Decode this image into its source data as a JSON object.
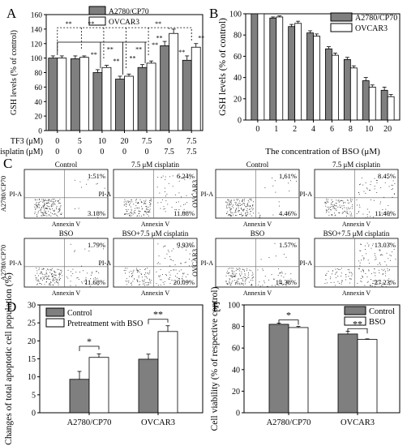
{
  "panels": {
    "A": {
      "letter": "A"
    },
    "B": {
      "letter": "B"
    },
    "C": {
      "letter": "C"
    },
    "D": {
      "letter": "D"
    },
    "E": {
      "letter": "E"
    }
  },
  "colors": {
    "gray": "#7f7f7f",
    "white": "#ffffff",
    "dark": "#6a6a6a"
  },
  "chart_data": [
    {
      "id": "A",
      "type": "bar",
      "ylabel": "GSH levels (% of control)",
      "ylim": [
        0,
        160
      ],
      "yticks": [
        0,
        20,
        40,
        60,
        80,
        100,
        120,
        140,
        160
      ],
      "row_labels": [
        "TF3 (μM)",
        "cisplatin (μM)"
      ],
      "categories": [
        {
          "tf3": "0",
          "cis": "0"
        },
        {
          "tf3": "5",
          "cis": "0"
        },
        {
          "tf3": "10",
          "cis": "0"
        },
        {
          "tf3": "20",
          "cis": "0"
        },
        {
          "tf3": "7.5",
          "cis": "0"
        },
        {
          "tf3": "0",
          "cis": "7.5"
        },
        {
          "tf3": "7.5",
          "cis": "7.5"
        }
      ],
      "series": [
        {
          "name": "A2780/CP70",
          "values": [
            100,
            99,
            80,
            71,
            87,
            117,
            97
          ],
          "errors": [
            3,
            4,
            4,
            4,
            4,
            6,
            6
          ]
        },
        {
          "name": "OVCAR3",
          "values": [
            100,
            101,
            87,
            75,
            93,
            134,
            115
          ],
          "errors": [
            3,
            2,
            3,
            3,
            3,
            6,
            5
          ]
        }
      ],
      "sig": "**"
    },
    {
      "id": "B",
      "type": "bar",
      "ylabel": "GSH levels (% of control)",
      "xlabel": "The concentration of BSO (μM)",
      "ylim": [
        0,
        100
      ],
      "yticks": [
        0,
        20,
        40,
        60,
        80,
        100
      ],
      "categories": [
        "0",
        "1",
        "2",
        "4",
        "6",
        "8",
        "10",
        "20"
      ],
      "series": [
        {
          "name": "A2780/CP70",
          "values": [
            100,
            96,
            88,
            82,
            67,
            57,
            37,
            28
          ],
          "errors": [
            0,
            1,
            2,
            2,
            2,
            2,
            3,
            3
          ]
        },
        {
          "name": "OVCAR3",
          "values": [
            100,
            97,
            91,
            79,
            61,
            49,
            31,
            22
          ],
          "errors": [
            0,
            1,
            2,
            2,
            2,
            2,
            2,
            2
          ]
        }
      ]
    },
    {
      "id": "C",
      "type": "scatter",
      "xlabel": "Annexin V",
      "ylabel": "PI-A",
      "plots": [
        {
          "title": "Control",
          "cell": "A2780/CP70",
          "ur": "1.51%",
          "lr": "3.18%",
          "treated": false
        },
        {
          "title": "7.5 μM cisplatin",
          "cell": "",
          "ur": "6.24%",
          "lr": "11.88%",
          "treated": true
        },
        {
          "title": "Control",
          "cell": "OVCAR3",
          "ur": "1.61%",
          "lr": "4.46%",
          "treated": false
        },
        {
          "title": "7.5 μM cisplatin",
          "cell": "",
          "ur": "8.45%",
          "lr": "11.40%",
          "treated": true
        },
        {
          "title": "BSO",
          "cell": "A2780/CP70",
          "ur": "1.79%",
          "lr": "11.68%",
          "treated": false
        },
        {
          "title": "BSO+7.5 μM cisplatin",
          "cell": "",
          "ur": "9.93%",
          "lr": "20.09%",
          "treated": true
        },
        {
          "title": "BSO",
          "cell": "OVCAR3",
          "ur": "1.57%",
          "lr": "14.38%",
          "treated": false
        },
        {
          "title": "BSO+7.5 μM cisplatin",
          "cell": "",
          "ur": "13.03%",
          "lr": "27.23%",
          "treated": true
        }
      ]
    },
    {
      "id": "D",
      "type": "bar",
      "ylabel": "Changes of total apoptotic cell population (%)",
      "ylim": [
        0,
        30
      ],
      "yticks": [
        0,
        5,
        10,
        15,
        20,
        25,
        30
      ],
      "categories": [
        "A2780/CP70",
        "OVCAR3"
      ],
      "series": [
        {
          "name": "Control",
          "values": [
            9.3,
            14.9
          ],
          "errors": [
            2.2,
            1.4
          ]
        },
        {
          "name": "Pretreatment with BSO",
          "values": [
            15.4,
            22.6
          ],
          "errors": [
            1.0,
            1.6
          ]
        }
      ],
      "sig": [
        "*",
        "**"
      ]
    },
    {
      "id": "E",
      "type": "bar",
      "ylabel": "Cell viability (% of respective control)",
      "ylim": [
        0,
        100
      ],
      "yticks": [
        0,
        20,
        40,
        60,
        80,
        100
      ],
      "categories": [
        "A2780/CP70",
        "OVCAR3"
      ],
      "series": [
        {
          "name": "Control",
          "values": [
            82,
            73
          ],
          "errors": [
            1.0,
            2.5
          ]
        },
        {
          "name": "BSO",
          "values": [
            79,
            68
          ],
          "errors": [
            1.0,
            0.5
          ]
        }
      ],
      "sig": [
        "*",
        "**"
      ]
    }
  ]
}
